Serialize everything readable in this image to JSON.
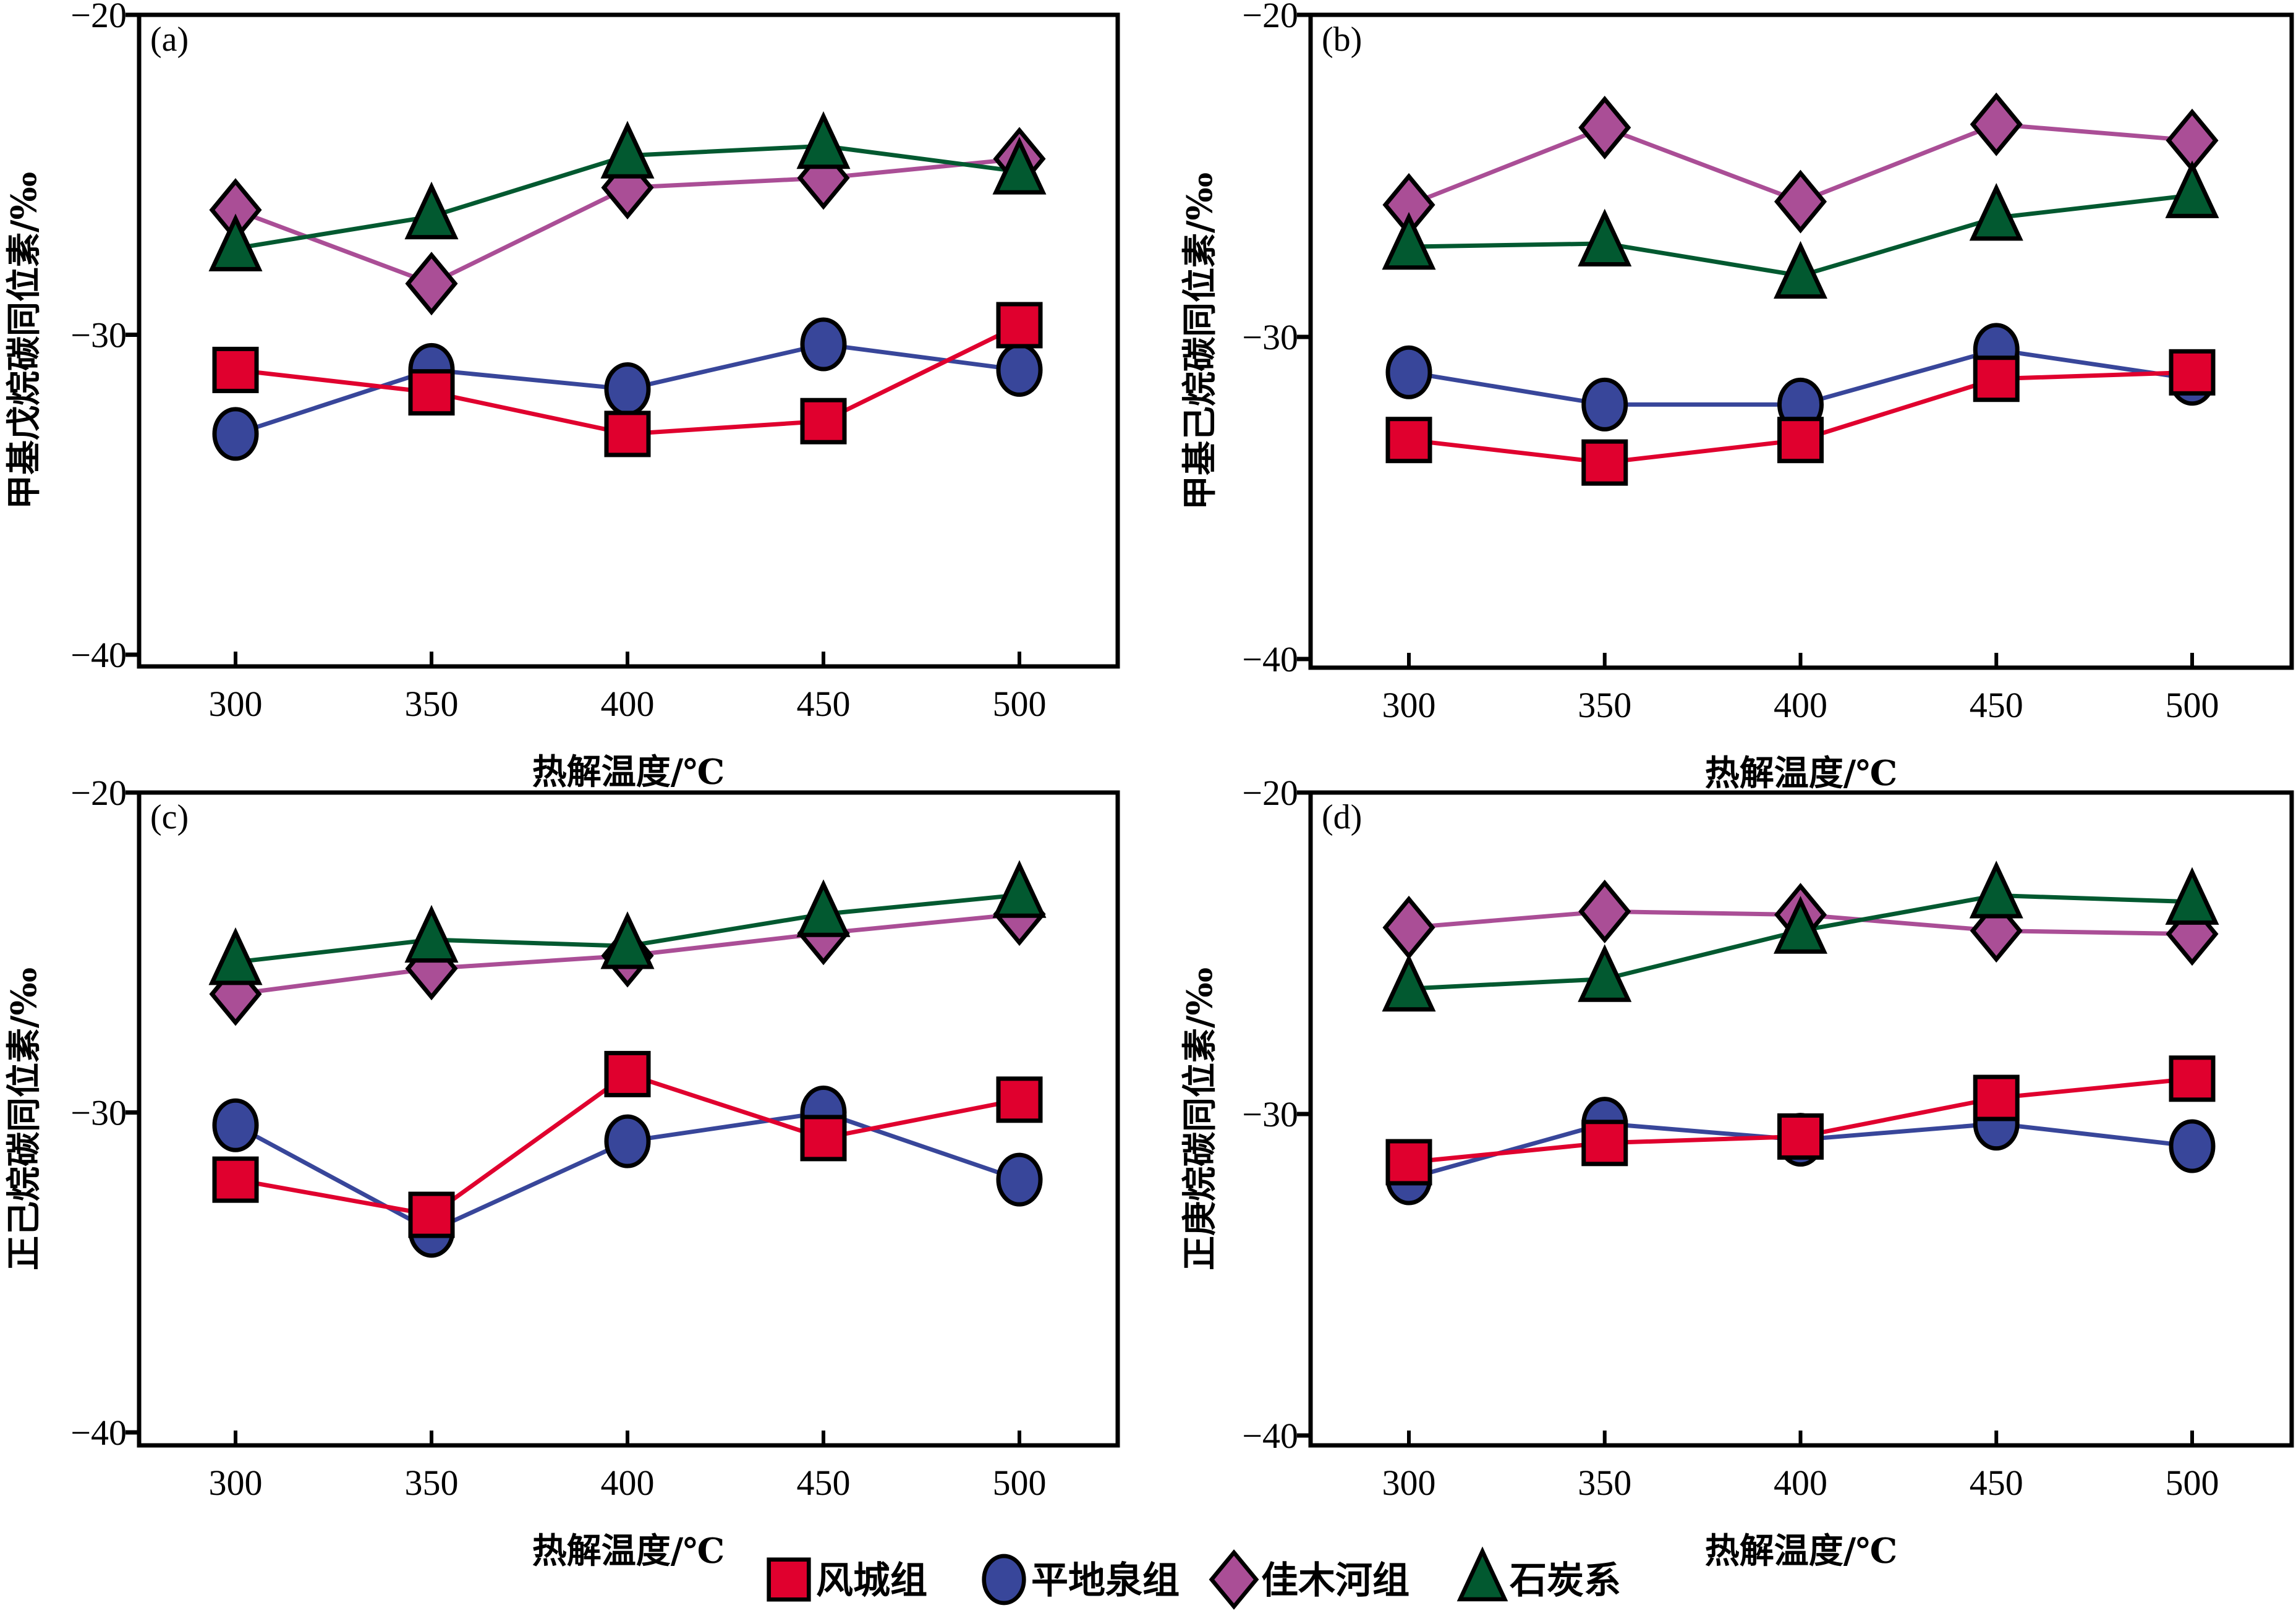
{
  "chart_data": [
    {
      "type": "line",
      "panel_label": "(a)",
      "xlabel": "热解温度/℃",
      "ylabel": "甲基戊烷碳同位素/‰",
      "x": [
        300,
        350,
        400,
        450,
        500
      ],
      "ylim": [
        -40,
        -20
      ],
      "yticks": [
        -20,
        -30,
        -40
      ],
      "ytick_labels": [
        "−20",
        "−30",
        "−40"
      ],
      "xtick_labels": [
        "300",
        "350",
        "400",
        "450",
        "500"
      ],
      "grid": false,
      "series": [
        {
          "name": "风城组",
          "values": [
            -31.1,
            -31.8,
            -33.1,
            -32.7,
            -29.7
          ]
        },
        {
          "name": "平地泉组",
          "values": [
            -33.1,
            -31.1,
            -31.7,
            -30.3,
            -31.1
          ]
        },
        {
          "name": "佳木河组",
          "values": [
            -26.1,
            -28.4,
            -25.4,
            -25.1,
            -24.5
          ]
        },
        {
          "name": "石炭系",
          "values": [
            -27.3,
            -26.3,
            -24.4,
            -24.1,
            -24.9
          ]
        }
      ]
    },
    {
      "type": "line",
      "panel_label": "(b)",
      "xlabel": "热解温度/℃",
      "ylabel": "甲基己烷碳同位素/‰",
      "x": [
        300,
        350,
        400,
        450,
        500
      ],
      "ylim": [
        -40,
        -20
      ],
      "yticks": [
        -20,
        -30,
        -40
      ],
      "ytick_labels": [
        "−20",
        "−30",
        "−40"
      ],
      "xtick_labels": [
        "300",
        "350",
        "400",
        "450",
        "500"
      ],
      "grid": false,
      "series": [
        {
          "name": "风城组",
          "values": [
            -33.2,
            -33.9,
            -33.2,
            -31.3,
            -31.1
          ]
        },
        {
          "name": "平地泉组",
          "values": [
            -31.1,
            -32.1,
            -32.1,
            -30.4,
            -31.3
          ]
        },
        {
          "name": "佳木河组",
          "values": [
            -25.9,
            -23.5,
            -25.8,
            -23.4,
            -23.9
          ]
        },
        {
          "name": "石炭系",
          "values": [
            -27.2,
            -27.1,
            -28.1,
            -26.3,
            -25.6
          ]
        }
      ]
    },
    {
      "type": "line",
      "panel_label": "(c)",
      "xlabel": "热解温度/℃",
      "ylabel": "正己烷碳同位素/‰",
      "x": [
        300,
        350,
        400,
        450,
        500
      ],
      "ylim": [
        -40,
        -20
      ],
      "yticks": [
        -20,
        -30,
        -40
      ],
      "ytick_labels": [
        "−20",
        "−30",
        "−40"
      ],
      "xtick_labels": [
        "300",
        "350",
        "400",
        "450",
        "500"
      ],
      "grid": false,
      "series": [
        {
          "name": "风城组",
          "values": [
            -32.1,
            -33.2,
            -28.8,
            -30.8,
            -29.6
          ]
        },
        {
          "name": "平地泉组",
          "values": [
            -30.4,
            -33.7,
            -30.9,
            -30.0,
            -32.1
          ]
        },
        {
          "name": "佳木河组",
          "values": [
            -26.3,
            -25.5,
            -25.1,
            -24.4,
            -23.8
          ]
        },
        {
          "name": "石炭系",
          "values": [
            -25.3,
            -24.6,
            -24.8,
            -23.8,
            -23.2
          ]
        }
      ]
    },
    {
      "type": "line",
      "panel_label": "(d)",
      "xlabel": "热解温度/℃",
      "ylabel": "正庚烷碳同位素/‰",
      "x": [
        300,
        350,
        400,
        450,
        500
      ],
      "ylim": [
        -40,
        -20
      ],
      "yticks": [
        -20,
        -30,
        -40
      ],
      "ytick_labels": [
        "−20",
        "−30",
        "−40"
      ],
      "xtick_labels": [
        "300",
        "350",
        "400",
        "450",
        "500"
      ],
      "grid": false,
      "series": [
        {
          "name": "风城组",
          "values": [
            -31.5,
            -30.9,
            -30.7,
            -29.5,
            -28.9
          ]
        },
        {
          "name": "平地泉组",
          "values": [
            -32.0,
            -30.3,
            -30.8,
            -30.3,
            -31.0
          ]
        },
        {
          "name": "佳木河组",
          "values": [
            -24.2,
            -23.7,
            -23.8,
            -24.3,
            -24.4
          ]
        },
        {
          "name": "石炭系",
          "values": [
            -26.1,
            -25.8,
            -24.3,
            -23.2,
            -23.4
          ]
        }
      ]
    }
  ],
  "legend": {
    "placement": "bottom-center",
    "items": [
      {
        "name": "风城组",
        "marker": "square",
        "color": "#E0002E"
      },
      {
        "name": "平地泉组",
        "marker": "circle",
        "color": "#38469A"
      },
      {
        "name": "佳木河组",
        "marker": "diamond",
        "color": "#AA4E96"
      },
      {
        "name": "石炭系",
        "marker": "triangle",
        "color": "#025930"
      }
    ]
  },
  "series_styles": {
    "风城组": {
      "marker": "square",
      "color": "#E0002E"
    },
    "平地泉组": {
      "marker": "circle",
      "color": "#38469A"
    },
    "佳木河组": {
      "marker": "diamond",
      "color": "#AA4E96"
    },
    "石炭系": {
      "marker": "triangle",
      "color": "#025930"
    }
  }
}
